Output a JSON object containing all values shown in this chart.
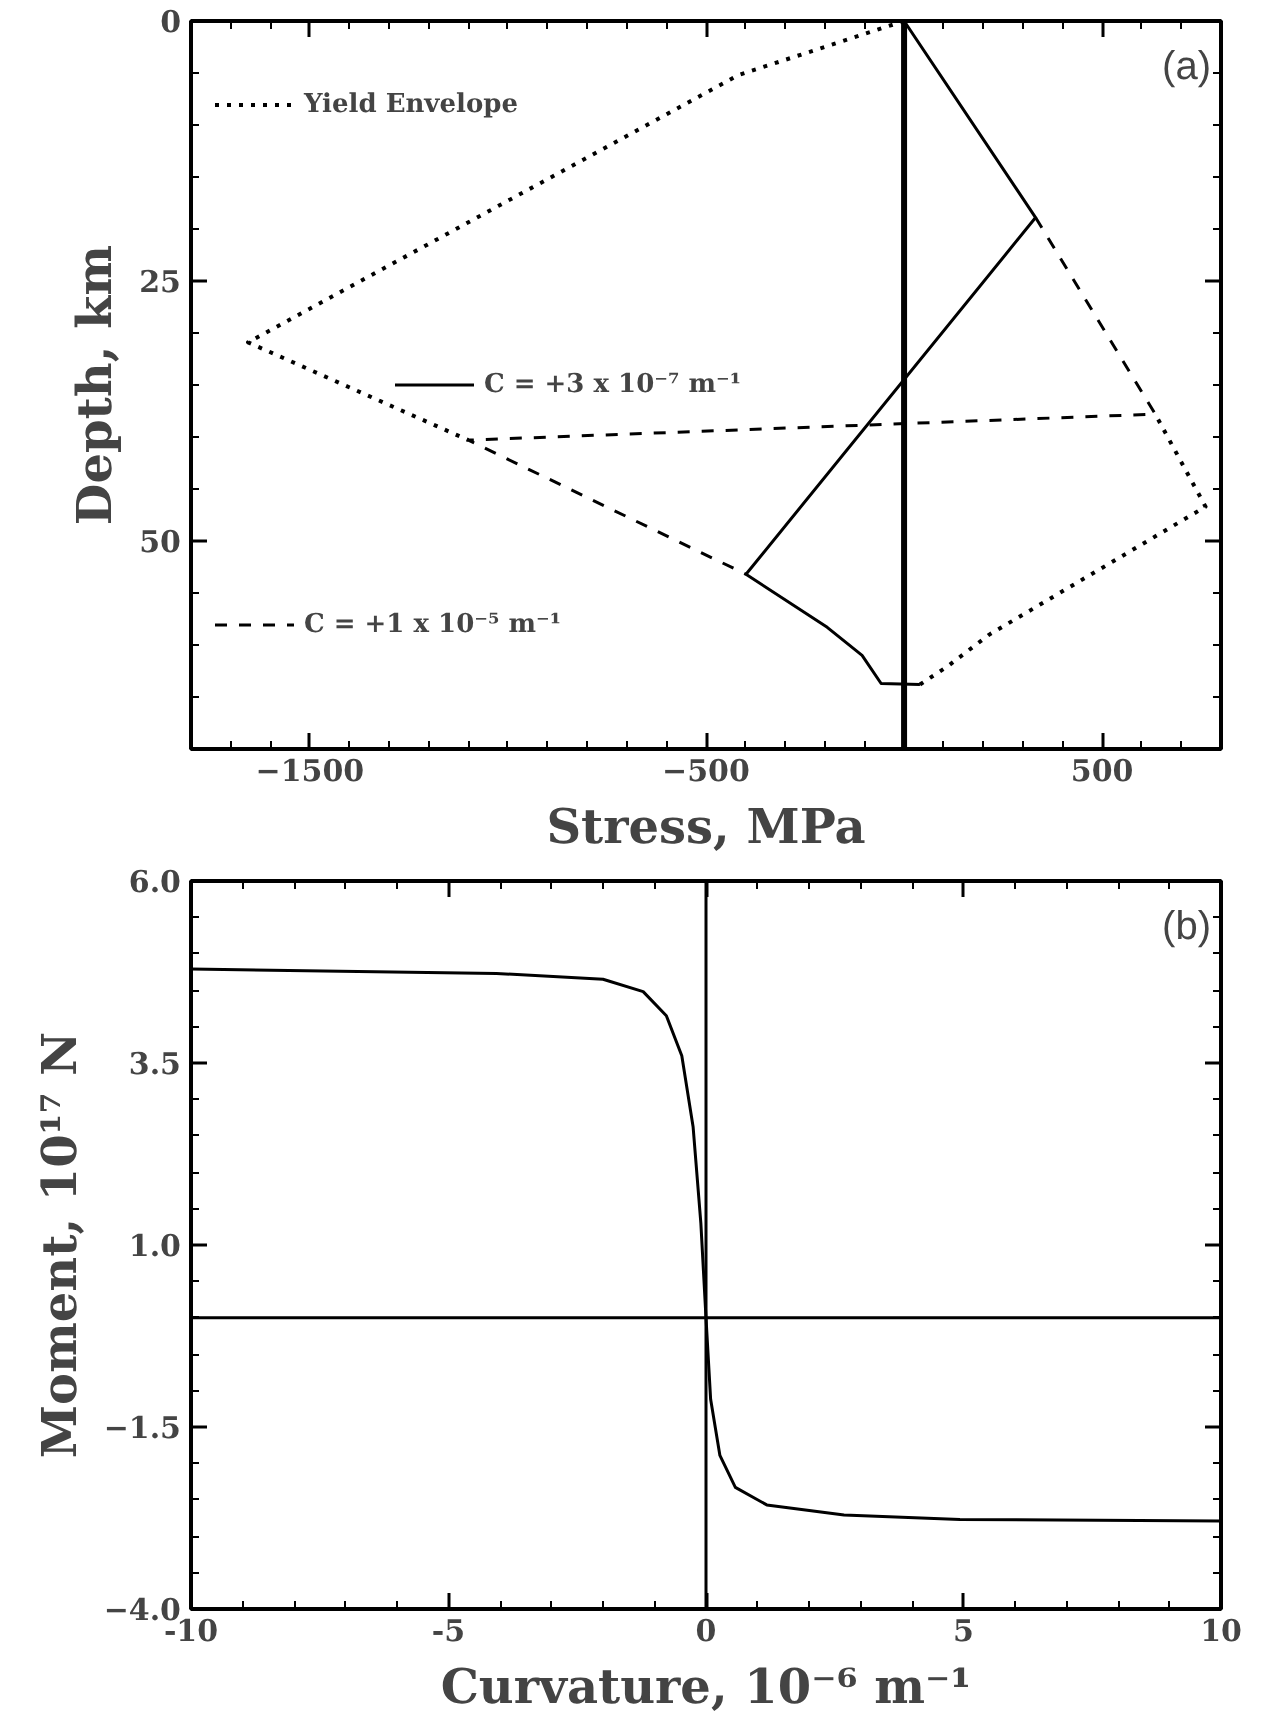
{
  "chart_data": [
    {
      "type": "line",
      "xlabel": "Stress, MPa",
      "ylabel": "Depth, km",
      "annotations": [
        "(a)"
      ],
      "xlim": [
        -1800,
        800
      ],
      "ylim": [
        70,
        0
      ],
      "xticks": [
        {
          "value": -1800,
          "label": null
        },
        {
          "value": -1700,
          "label": null
        },
        {
          "value": -1600,
          "label": null
        },
        {
          "value": -1500,
          "label": "−1500"
        },
        {
          "value": -1400,
          "label": null
        },
        {
          "value": -1300,
          "label": null
        },
        {
          "value": -1200,
          "label": null
        },
        {
          "value": -1100,
          "label": null
        },
        {
          "value": -1000,
          "label": null
        },
        {
          "value": -900,
          "label": null
        },
        {
          "value": -800,
          "label": null
        },
        {
          "value": -700,
          "label": null
        },
        {
          "value": -600,
          "label": null
        },
        {
          "value": -500,
          "label": "−500"
        },
        {
          "value": -400,
          "label": null
        },
        {
          "value": -300,
          "label": null
        },
        {
          "value": -200,
          "label": null
        },
        {
          "value": -100,
          "label": null
        },
        {
          "value": 0,
          "label": null
        },
        {
          "value": 100,
          "label": null
        },
        {
          "value": 200,
          "label": null
        },
        {
          "value": 300,
          "label": null
        },
        {
          "value": 400,
          "label": null
        },
        {
          "value": 500,
          "label": "500"
        },
        {
          "value": 600,
          "label": null
        },
        {
          "value": 700,
          "label": null
        },
        {
          "value": 800,
          "label": null
        }
      ],
      "yticks": [
        0,
        {
          "value": 5,
          "label": null
        },
        {
          "value": 10,
          "label": null
        },
        {
          "value": 15,
          "label": null
        },
        {
          "value": 20,
          "label": null
        },
        25,
        {
          "value": 30,
          "label": null
        },
        {
          "value": 35,
          "label": null
        },
        {
          "value": 40,
          "label": null
        },
        {
          "value": 45,
          "label": null
        },
        50,
        {
          "value": 55,
          "label": null
        },
        {
          "value": 60,
          "label": null
        },
        {
          "value": 65,
          "label": null
        },
        {
          "value": 70,
          "label": null
        }
      ],
      "grid": false,
      "legend": "left",
      "marker": "none",
      "ref_lines": [
        {
          "axis": "x",
          "value": 0,
          "label": null
        }
      ],
      "series": [
        {
          "name": "Yield Envelope",
          "color": "#000000",
          "line_style": "dotted",
          "x": [
            0,
            -418,
            -1656,
            -1100,
            null,
            40,
            108,
            215,
            761,
            634
          ],
          "values": [
            0,
            5.2,
            30.9,
            40.3,
            null,
            63.8,
            62.1,
            59,
            46.7,
            37.8
          ]
        },
        {
          "name": "C = +3 x 10⁻⁷ m⁻¹",
          "color": "#000000",
          "line_style": "solid",
          "x": [
            0,
            332,
            -399,
            -194,
            -106,
            -58,
            40
          ],
          "values": [
            0,
            18.9,
            53.2,
            58.3,
            61,
            63.7,
            63.8
          ]
        },
        {
          "name": "C = +1 x 10⁻⁵ m⁻¹",
          "color": "#000000",
          "line_style": "dashed",
          "x": [
            332,
            634,
            -1100,
            -399
          ],
          "values": [
            18.9,
            37.8,
            40.3,
            53.2
          ]
        }
      ]
    },
    {
      "type": "line",
      "xlabel": "Curvature, 10⁻⁶ m⁻¹",
      "ylabel": "Moment, 10¹⁷ N",
      "annotations": [
        "(b)"
      ],
      "xlim": [
        -10,
        10
      ],
      "ylim": [
        -4,
        6
      ],
      "xticks": [
        -10,
        {
          "value": -9,
          "label": null
        },
        {
          "value": -8,
          "label": null
        },
        {
          "value": -7,
          "label": null
        },
        {
          "value": -6,
          "label": null
        },
        -5,
        {
          "value": -4,
          "label": null
        },
        {
          "value": -3,
          "label": null
        },
        {
          "value": -2,
          "label": null
        },
        {
          "value": -1,
          "label": null
        },
        0,
        {
          "value": 1,
          "label": null
        },
        {
          "value": 2,
          "label": null
        },
        {
          "value": 3,
          "label": null
        },
        {
          "value": 4,
          "label": null
        },
        5,
        {
          "value": 6,
          "label": null
        },
        {
          "value": 7,
          "label": null
        },
        {
          "value": 8,
          "label": null
        },
        {
          "value": 9,
          "label": null
        },
        10
      ],
      "yticks": [
        {
          "value": -4,
          "label": "−4.0"
        },
        {
          "value": -3.5,
          "label": null
        },
        {
          "value": -3,
          "label": null
        },
        {
          "value": -2.5,
          "label": null
        },
        {
          "value": -2,
          "label": null
        },
        {
          "value": -1.5,
          "label": "−1.5"
        },
        {
          "value": -1,
          "label": null
        },
        {
          "value": -0.5,
          "label": null
        },
        {
          "value": 0,
          "label": null
        },
        {
          "value": 0.5,
          "label": null
        },
        {
          "value": 1,
          "label": "1.0"
        },
        {
          "value": 1.5,
          "label": null
        },
        {
          "value": 2,
          "label": null
        },
        {
          "value": 2.5,
          "label": null
        },
        {
          "value": 3,
          "label": null
        },
        {
          "value": 3.5,
          "label": "3.5"
        },
        {
          "value": 4,
          "label": null
        },
        {
          "value": 4.5,
          "label": null
        },
        {
          "value": 5,
          "label": null
        },
        {
          "value": 5.5,
          "label": null
        },
        {
          "value": 6,
          "label": "6.0"
        }
      ],
      "grid": false,
      "legend": false,
      "marker": "none",
      "ref_lines": [
        {
          "axis": "x",
          "value": 0,
          "label": null
        },
        {
          "axis": "y",
          "value": 0,
          "label": null
        }
      ],
      "series": [
        {
          "color": "#000000",
          "line_style": "solid",
          "x": [
            -10,
            -4.07,
            -2.0,
            -1.22,
            -0.77,
            -0.47,
            -0.25,
            -0.1,
            0,
            0.09,
            0.27,
            0.57,
            1.18,
            2.68,
            4.93,
            10
          ],
          "values": [
            4.79,
            4.73,
            4.65,
            4.48,
            4.15,
            3.6,
            2.62,
            1.3,
            0,
            -1.12,
            -1.89,
            -2.33,
            -2.57,
            -2.71,
            -2.77,
            -2.79
          ]
        }
      ]
    }
  ]
}
